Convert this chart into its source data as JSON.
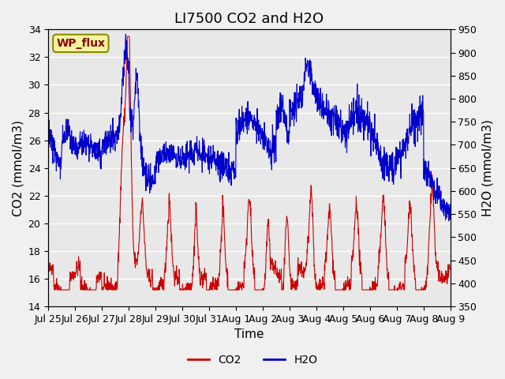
{
  "title": "LI7500 CO2 and H2O",
  "xlabel": "Time",
  "ylabel_left": "CO2 (mmol/m3)",
  "ylabel_right": "H2O (mmol/m3)",
  "ylim_left": [
    14,
    34
  ],
  "ylim_right": [
    350,
    950
  ],
  "yticks_left": [
    14,
    16,
    18,
    20,
    22,
    24,
    26,
    28,
    30,
    32,
    34
  ],
  "yticks_right": [
    350,
    400,
    450,
    500,
    550,
    600,
    650,
    700,
    750,
    800,
    850,
    900,
    950
  ],
  "xtick_labels": [
    "Jul 25",
    "Jul 26",
    "Jul 27",
    "Jul 28",
    "Jul 29",
    "Jul 30",
    "Jul 31",
    "Aug 1",
    "Aug 2",
    "Aug 3",
    "Aug 4",
    "Aug 5",
    "Aug 6",
    "Aug 7",
    "Aug 8",
    "Aug 9"
  ],
  "watermark_text": "WP_flux",
  "co2_color": "#cc0000",
  "h2o_color": "#0000cc",
  "plot_bg_color": "#e8e8e8",
  "fig_bg_color": "#f0f0f0",
  "title_fontsize": 13,
  "axis_label_fontsize": 11,
  "tick_fontsize": 9
}
